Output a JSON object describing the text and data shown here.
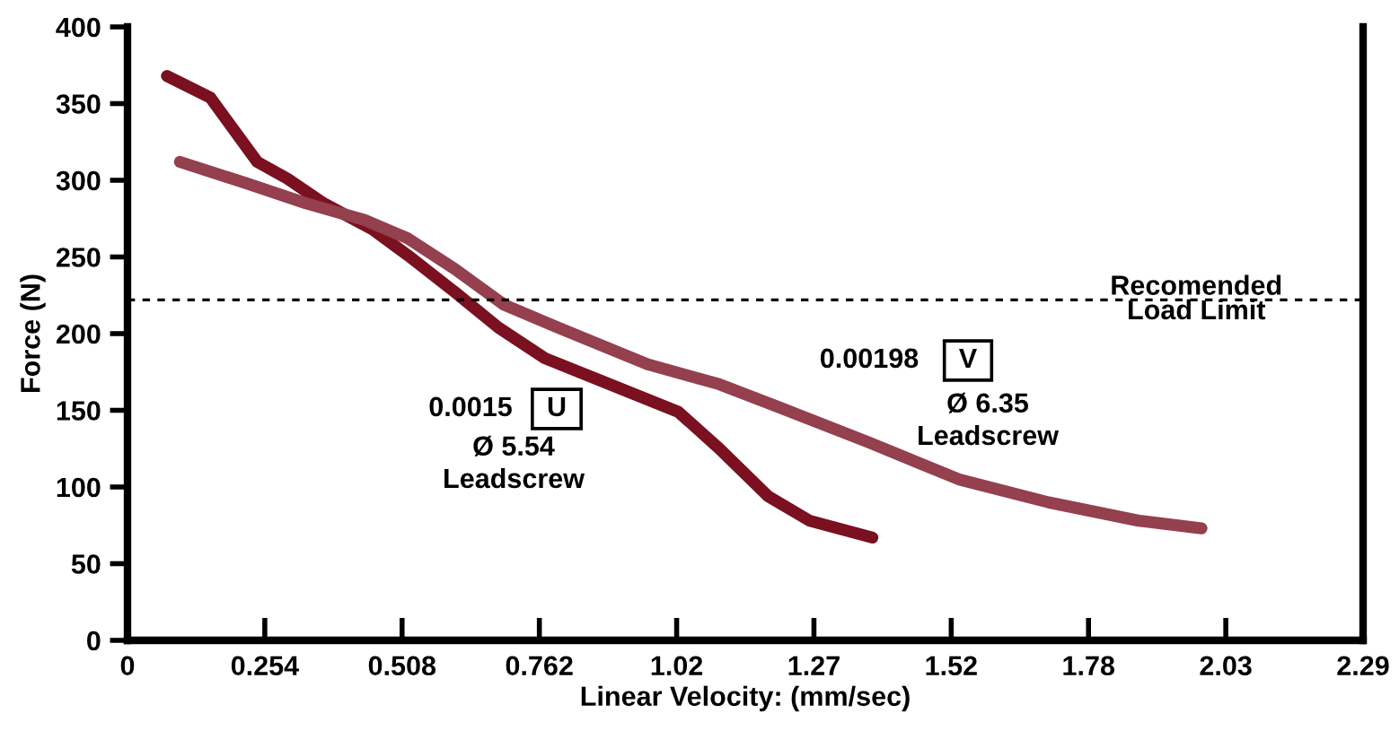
{
  "chart_data": {
    "type": "line",
    "xlabel": "Linear Velocity: (mm/sec)",
    "ylabel": "Force (N)",
    "xlim": [
      0,
      2.286
    ],
    "ylim": [
      0,
      400
    ],
    "xticks": [
      0,
      {
        "value": 0.254,
        "label": "0.254"
      },
      {
        "value": 0.508,
        "label": "0.508"
      },
      {
        "value": 0.762,
        "label": "0.762"
      },
      {
        "value": 1.016,
        "label": "1.02"
      },
      {
        "value": 1.27,
        "label": "1.27"
      },
      {
        "value": 1.524,
        "label": "1.52"
      },
      {
        "value": 1.778,
        "label": "1.78"
      },
      {
        "value": 2.032,
        "label": "2.03"
      },
      {
        "value": 2.286,
        "label": "2.29"
      }
    ],
    "yticks": [
      0,
      50,
      100,
      150,
      200,
      250,
      300,
      350,
      400
    ],
    "grid": false,
    "legend": false,
    "marker": "none",
    "line_style": "solid",
    "series": [
      {
        "color": "#7a1020",
        "x": [
          0.073,
          0.153,
          0.24,
          0.296,
          0.363,
          0.453,
          0.519,
          0.606,
          0.686,
          0.772,
          0.885,
          1.019,
          1.095,
          1.185,
          1.262,
          1.378
        ],
        "values": [
          368,
          354,
          312,
          301,
          285,
          268,
          251,
          227,
          204,
          184,
          168,
          149,
          125,
          94,
          78,
          67
        ]
      },
      {
        "color": "#94404e",
        "x": [
          0.097,
          0.22,
          0.33,
          0.439,
          0.519,
          0.606,
          0.696,
          0.796,
          0.962,
          1.095,
          1.205,
          1.372,
          1.538,
          1.704,
          1.871,
          1.987
        ],
        "values": [
          312,
          298,
          285,
          274,
          262,
          242,
          219,
          204,
          180,
          167,
          152,
          129,
          105,
          90,
          78,
          73
        ]
      }
    ],
    "ref_lines": [
      {
        "axis": "y",
        "value": 222,
        "label": "Recomended\nLoad Limit",
        "color": "#000000",
        "line_style": "dotted"
      }
    ],
    "annotations": [
      "0.0015",
      "U",
      "Ø 5.54\nLeadscrew",
      "0.00198",
      "V",
      "Ø 6.35\nLeadscrew"
    ]
  }
}
